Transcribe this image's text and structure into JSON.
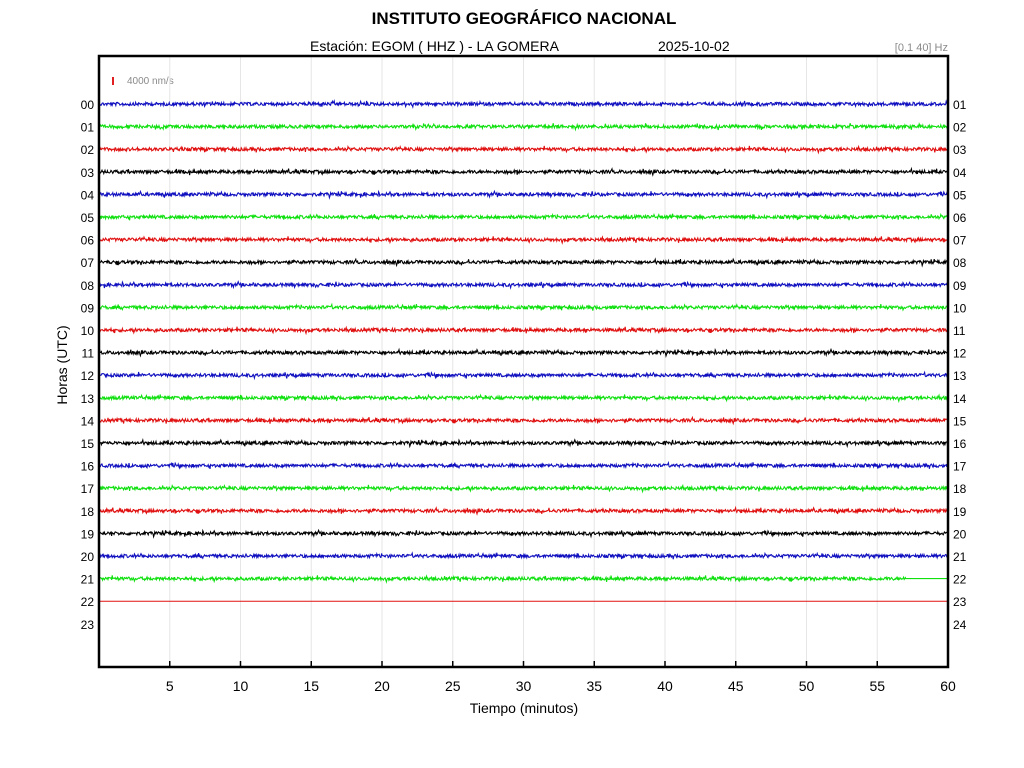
{
  "chart_data": {
    "type": "line",
    "title": "INSTITUTO GEOGRÁFICO NACIONAL",
    "station_label": "Estación:  EGOM ( HHZ ) - LA GOMERA",
    "date": "2025-10-02",
    "filter_label": "[0.1 40] Hz",
    "scale_label": "4000 nm/s",
    "xlabel": "Tiempo (minutos)",
    "ylabel": "Horas (UTC)",
    "xlim": [
      0,
      60
    ],
    "x_ticks": [
      5,
      10,
      15,
      20,
      25,
      30,
      35,
      40,
      45,
      50,
      55,
      60
    ],
    "y_ticks_left": [
      "00",
      "01",
      "02",
      "03",
      "04",
      "05",
      "06",
      "07",
      "08",
      "09",
      "10",
      "11",
      "12",
      "13",
      "14",
      "15",
      "16",
      "17",
      "18",
      "19",
      "20",
      "21",
      "22",
      "23"
    ],
    "y_ticks_right": [
      "01",
      "02",
      "03",
      "04",
      "05",
      "06",
      "07",
      "08",
      "09",
      "10",
      "11",
      "12",
      "13",
      "14",
      "15",
      "16",
      "17",
      "18",
      "19",
      "20",
      "21",
      "22",
      "23",
      "24"
    ],
    "grid": true,
    "series_colors": [
      "#1010c0",
      "#10e010",
      "#e01010",
      "#000000"
    ],
    "traces": [
      {
        "hour": 0,
        "end_minute": 60,
        "color": "#1010c0"
      },
      {
        "hour": 1,
        "end_minute": 60,
        "color": "#10e010"
      },
      {
        "hour": 2,
        "end_minute": 60,
        "color": "#e01010"
      },
      {
        "hour": 3,
        "end_minute": 60,
        "color": "#000000"
      },
      {
        "hour": 4,
        "end_minute": 60,
        "color": "#1010c0"
      },
      {
        "hour": 5,
        "end_minute": 60,
        "color": "#10e010"
      },
      {
        "hour": 6,
        "end_minute": 60,
        "color": "#e01010"
      },
      {
        "hour": 7,
        "end_minute": 60,
        "color": "#000000"
      },
      {
        "hour": 8,
        "end_minute": 60,
        "color": "#1010c0"
      },
      {
        "hour": 9,
        "end_minute": 60,
        "color": "#10e010"
      },
      {
        "hour": 10,
        "end_minute": 60,
        "color": "#e01010"
      },
      {
        "hour": 11,
        "end_minute": 60,
        "color": "#000000"
      },
      {
        "hour": 12,
        "end_minute": 60,
        "color": "#1010c0"
      },
      {
        "hour": 13,
        "end_minute": 60,
        "color": "#10e010"
      },
      {
        "hour": 14,
        "end_minute": 60,
        "color": "#e01010"
      },
      {
        "hour": 15,
        "end_minute": 60,
        "color": "#000000"
      },
      {
        "hour": 16,
        "end_minute": 60,
        "color": "#1010c0"
      },
      {
        "hour": 17,
        "end_minute": 60,
        "color": "#10e010"
      },
      {
        "hour": 18,
        "end_minute": 60,
        "color": "#e01010"
      },
      {
        "hour": 19,
        "end_minute": 60,
        "color": "#000000"
      },
      {
        "hour": 20,
        "end_minute": 60,
        "color": "#1010c0"
      },
      {
        "hour": 21,
        "end_minute": 57,
        "color": "#10e010"
      },
      {
        "hour": 22,
        "end_minute": 0,
        "color": "#e01010"
      }
    ]
  }
}
